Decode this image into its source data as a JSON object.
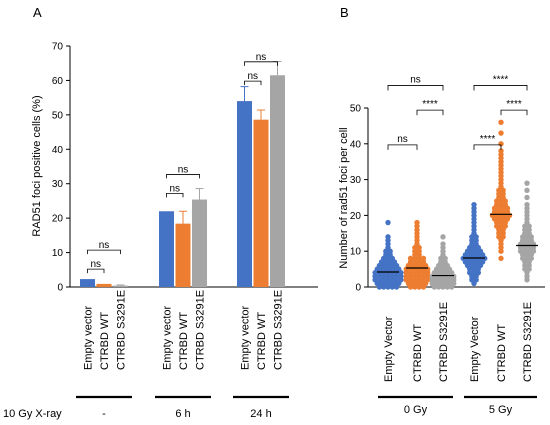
{
  "colors": {
    "empty": "#4472C4",
    "wt": "#ED7D31",
    "s3291e": "#A5A5A5"
  },
  "chart_data": [
    {
      "panel_label": "A",
      "type": "bar",
      "ylabel": "RAD51 foci positive cells (%)",
      "ylim": [
        0,
        70
      ],
      "yticks": [
        0,
        10,
        20,
        30,
        40,
        50,
        60,
        70
      ],
      "series_labels": [
        "Empty vector",
        "CTRBD WT",
        "CTRBD S3291E"
      ],
      "groups": [
        {
          "label": "-",
          "values": [
            2.3,
            0.9,
            0.4
          ],
          "errors": [
            0,
            0,
            0.2
          ]
        },
        {
          "label": "6 h",
          "values": [
            22,
            18.4,
            25.4
          ],
          "errors": [
            0,
            3.6,
            3.2
          ]
        },
        {
          "label": "24 h",
          "values": [
            54,
            48.6,
            61.5
          ],
          "errors": [
            4.2,
            2.8,
            4.0
          ]
        }
      ],
      "group_axis_title": "10 Gy X-ray",
      "significance": [
        {
          "group": 0,
          "from": 0,
          "to": 1,
          "y": 5.2,
          "label": "ns"
        },
        {
          "group": 0,
          "from": 0,
          "to": 2,
          "y": 10.7,
          "label": "ns"
        },
        {
          "group": 1,
          "from": 0,
          "to": 1,
          "y": 27.2,
          "label": "ns"
        },
        {
          "group": 1,
          "from": 0,
          "to": 2,
          "y": 32.7,
          "label": "ns"
        },
        {
          "group": 2,
          "from": 0,
          "to": 1,
          "y": 59.8,
          "label": "ns"
        },
        {
          "group": 2,
          "from": 0,
          "to": 2,
          "y": 65.4,
          "label": "ns"
        }
      ]
    },
    {
      "panel_label": "B",
      "type": "scatter",
      "ylabel": "Number of rad51 foci per cell",
      "ylim": [
        0,
        50
      ],
      "yticks": [
        0,
        10,
        20,
        30,
        40,
        50
      ],
      "categories": [
        "Empty Vector",
        "CTRBD WT",
        "CTRBD S3291E",
        "Empty Vector",
        "CTRBD WT",
        "CTRBD S3291E"
      ],
      "groups": [
        {
          "label": "0 Gy",
          "categories": [
            0,
            1,
            2
          ]
        },
        {
          "label": "5 Gy",
          "categories": [
            3,
            4,
            5
          ]
        }
      ],
      "series": [
        {
          "color": "empty",
          "mean": 4.2,
          "values": [
            0,
            0,
            0,
            0,
            0,
            1,
            1,
            1,
            1,
            1,
            1,
            2,
            2,
            2,
            2,
            2,
            2,
            2,
            3,
            3,
            3,
            3,
            3,
            3,
            3,
            4,
            4,
            4,
            4,
            4,
            4,
            4,
            5,
            5,
            5,
            5,
            5,
            5,
            6,
            6,
            6,
            6,
            6,
            7,
            7,
            7,
            7,
            8,
            8,
            8,
            9,
            9,
            10,
            10,
            11,
            12,
            13,
            14,
            18
          ]
        },
        {
          "color": "wt",
          "mean": 5.3,
          "values": [
            0,
            0,
            0,
            0,
            1,
            1,
            1,
            1,
            1,
            2,
            2,
            2,
            2,
            2,
            2,
            3,
            3,
            3,
            3,
            3,
            3,
            4,
            4,
            4,
            4,
            4,
            4,
            5,
            5,
            5,
            5,
            5,
            5,
            6,
            6,
            6,
            6,
            6,
            7,
            7,
            7,
            7,
            8,
            8,
            8,
            8,
            9,
            9,
            10,
            10,
            11,
            11,
            12,
            13,
            14,
            15,
            16,
            17,
            18
          ]
        },
        {
          "color": "s3291e",
          "mean": 3.2,
          "values": [
            0,
            0,
            0,
            0,
            0,
            1,
            1,
            1,
            1,
            1,
            1,
            2,
            2,
            2,
            2,
            2,
            2,
            3,
            3,
            3,
            3,
            3,
            3,
            4,
            4,
            4,
            4,
            4,
            5,
            5,
            5,
            5,
            6,
            6,
            6,
            7,
            7,
            8,
            8,
            9,
            10,
            11,
            12,
            14
          ]
        },
        {
          "color": "empty",
          "mean": 8.1,
          "values": [
            1,
            2,
            2,
            3,
            3,
            4,
            4,
            4,
            5,
            5,
            5,
            6,
            6,
            6,
            6,
            7,
            7,
            7,
            7,
            7,
            8,
            8,
            8,
            8,
            8,
            8,
            9,
            9,
            9,
            9,
            9,
            10,
            10,
            10,
            10,
            11,
            11,
            11,
            12,
            12,
            13,
            13,
            14,
            14,
            15,
            16,
            17,
            18,
            19,
            20,
            21,
            22,
            23
          ]
        },
        {
          "color": "wt",
          "mean": 20.3,
          "values": [
            8,
            10,
            11,
            12,
            13,
            14,
            14,
            15,
            15,
            16,
            16,
            17,
            17,
            17,
            18,
            18,
            18,
            19,
            19,
            19,
            19,
            20,
            20,
            20,
            20,
            20,
            21,
            21,
            21,
            21,
            22,
            22,
            22,
            22,
            23,
            23,
            23,
            24,
            24,
            24,
            25,
            25,
            26,
            26,
            27,
            27,
            28,
            29,
            30,
            31,
            32,
            33,
            34,
            35,
            36,
            37,
            38,
            40,
            43,
            46
          ]
        },
        {
          "color": "s3291e",
          "mean": 11.6,
          "values": [
            2,
            3,
            4,
            5,
            5,
            6,
            6,
            7,
            7,
            8,
            8,
            8,
            9,
            9,
            9,
            10,
            10,
            10,
            10,
            11,
            11,
            11,
            11,
            12,
            12,
            12,
            12,
            13,
            13,
            13,
            14,
            14,
            14,
            15,
            15,
            16,
            16,
            17,
            17,
            18,
            19,
            20,
            21,
            22,
            23,
            25,
            27,
            29
          ]
        }
      ],
      "significance": [
        {
          "from": 0,
          "to": 2,
          "y": 56.3,
          "label": "ns"
        },
        {
          "from": 1,
          "to": 2,
          "y": 49.4,
          "label": "****"
        },
        {
          "from": 0,
          "to": 1,
          "y": 39.7,
          "label": "ns"
        },
        {
          "from": 3,
          "to": 5,
          "y": 56.3,
          "label": "****"
        },
        {
          "from": 4,
          "to": 5,
          "y": 49.4,
          "label": "****"
        },
        {
          "from": 3,
          "to": 4,
          "y": 39.7,
          "label": "****"
        }
      ]
    }
  ]
}
